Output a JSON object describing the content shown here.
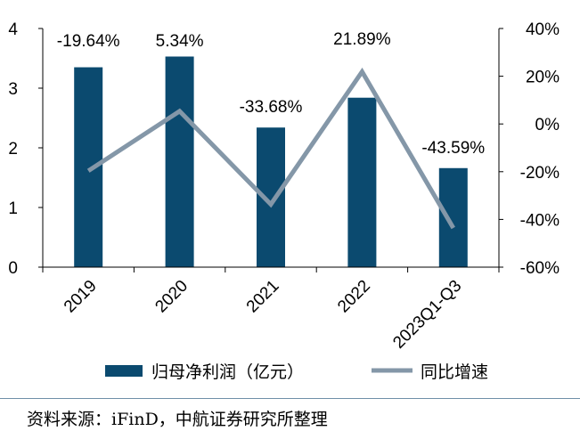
{
  "chart_data": {
    "type": "bar+line",
    "categories": [
      "2019",
      "2020",
      "2021",
      "2022",
      "2023Q1-Q3"
    ],
    "series": [
      {
        "name": "归母净利润（亿元）",
        "type": "bar",
        "axis": "left",
        "color": "#0b4a6f",
        "values": [
          3.35,
          3.53,
          2.34,
          2.84,
          1.66
        ]
      },
      {
        "name": "同比增速",
        "type": "line",
        "axis": "right",
        "color": "#8497a8",
        "values": [
          -19.64,
          5.34,
          -33.68,
          21.89,
          -43.59
        ],
        "labels": [
          "-19.64%",
          "5.34%",
          "-33.68%",
          "21.89%",
          "-43.59%"
        ]
      }
    ],
    "left_axis": {
      "ylim": [
        0,
        4
      ],
      "ticks": [
        "0",
        "1",
        "2",
        "3",
        "4"
      ],
      "tick_values": [
        0,
        1,
        2,
        3,
        4
      ]
    },
    "right_axis": {
      "ylim": [
        -60,
        40
      ],
      "ticks": [
        "-60%",
        "-40%",
        "-20%",
        "0%",
        "20%",
        "40%"
      ],
      "tick_values": [
        -60,
        -40,
        -20,
        0,
        20,
        40
      ]
    },
    "legend": [
      "归母净利润（亿元）",
      "同比增速"
    ],
    "legend_position": "bottom",
    "grid": false
  },
  "source": "资料来源：iFinD，中航证券研究所整理"
}
